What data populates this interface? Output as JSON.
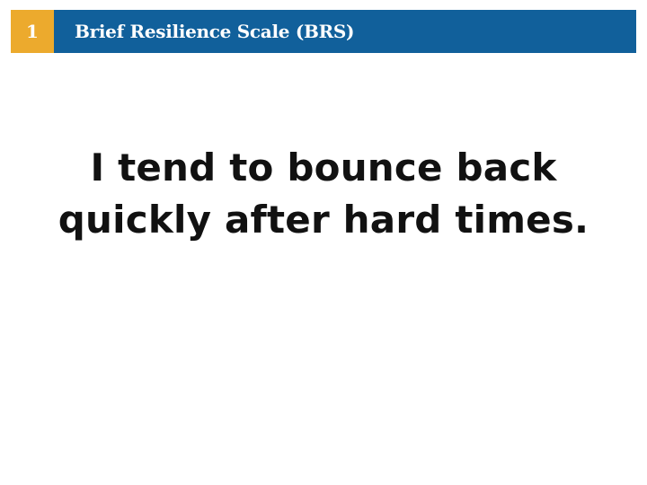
{
  "header": {
    "question_number": "1",
    "scale_title": "Brief Resilience Scale (BRS)"
  },
  "question": {
    "statement": "I tend to bounce back quickly after hard times."
  },
  "colors": {
    "number_badge": "#ecaa2d",
    "title_bar": "#11609b",
    "statement_text": "#111111"
  }
}
